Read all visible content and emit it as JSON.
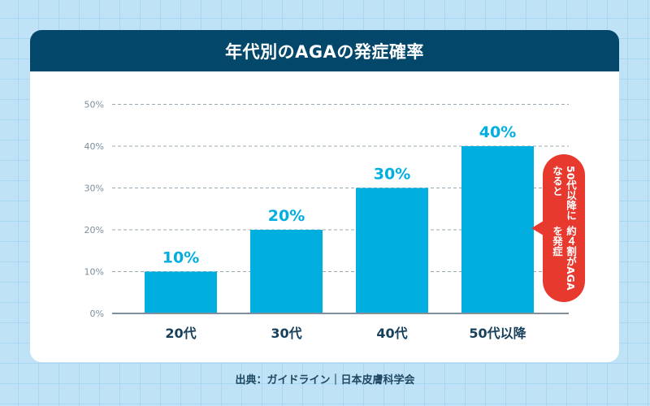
{
  "chart_data": {
    "type": "bar",
    "title": "年代別のAGAの発症確率",
    "categories": [
      "20代",
      "30代",
      "40代",
      "50代以降"
    ],
    "values": [
      10,
      20,
      30,
      40
    ],
    "data_labels": [
      "10%",
      "20%",
      "30%",
      "40%"
    ],
    "ylim": [
      0,
      50
    ],
    "yticks": [
      0,
      10,
      20,
      30,
      40,
      50
    ],
    "ytick_labels": [
      "0%",
      "10%",
      "20%",
      "30%",
      "40%",
      "50%"
    ],
    "grid": true,
    "bar_color": "#00aee0",
    "annotation": {
      "lines": [
        "50代以降になると",
        "約４割がAGAを発症"
      ],
      "color": "#e8392f"
    }
  },
  "header": {
    "title": "年代別のAGAの発症確率",
    "color": "#03486a"
  },
  "source": "出典：ガイドライン｜日本皮膚科学会"
}
